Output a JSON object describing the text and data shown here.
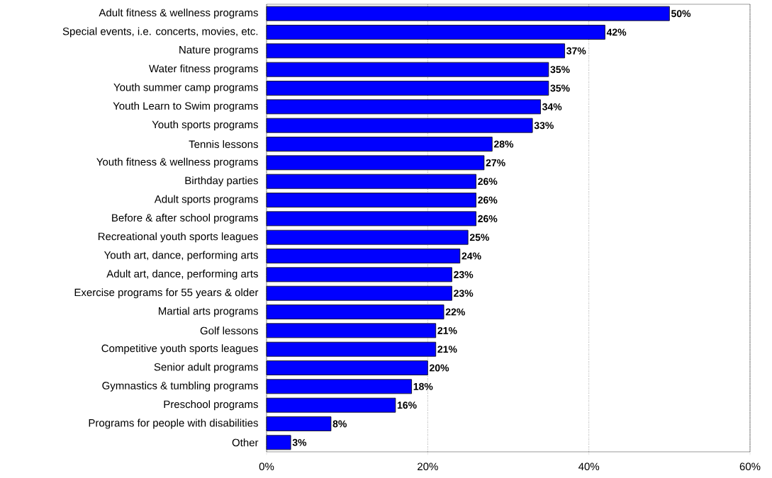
{
  "chart_data": {
    "type": "bar",
    "orientation": "horizontal",
    "categories": [
      "Adult fitness & wellness programs",
      "Special events, i.e. concerts, movies, etc.",
      "Nature programs",
      "Water fitness programs",
      "Youth summer camp programs",
      "Youth Learn to Swim programs",
      "Youth sports programs",
      "Tennis lessons",
      "Youth fitness & wellness programs",
      "Birthday parties",
      "Adult sports programs",
      "Before & after school programs",
      "Recreational youth sports leagues",
      "Youth art, dance, performing arts",
      "Adult art, dance, performing arts",
      "Exercise programs for 55 years & older",
      "Martial arts programs",
      "Golf lessons",
      "Competitive youth sports leagues",
      "Senior adult programs",
      "Gymnastics & tumbling programs",
      "Preschool programs",
      "Programs for people with disabilities",
      "Other"
    ],
    "values": [
      50,
      42,
      37,
      35,
      35,
      34,
      33,
      28,
      27,
      26,
      26,
      26,
      25,
      24,
      23,
      23,
      22,
      21,
      21,
      20,
      18,
      16,
      8,
      3
    ],
    "value_labels": [
      "50%",
      "42%",
      "37%",
      "35%",
      "35%",
      "34%",
      "33%",
      "28%",
      "27%",
      "26%",
      "26%",
      "26%",
      "25%",
      "24%",
      "23%",
      "23%",
      "22%",
      "21%",
      "21%",
      "20%",
      "18%",
      "16%",
      "8%",
      "3%"
    ],
    "color": "#0000ff",
    "xlim": [
      0,
      60
    ],
    "xticks": [
      {
        "value": 0,
        "label": "0%"
      },
      {
        "value": 20,
        "label": "20%"
      },
      {
        "value": 40,
        "label": "40%"
      },
      {
        "value": 60,
        "label": "60%"
      }
    ],
    "grid": "x"
  }
}
